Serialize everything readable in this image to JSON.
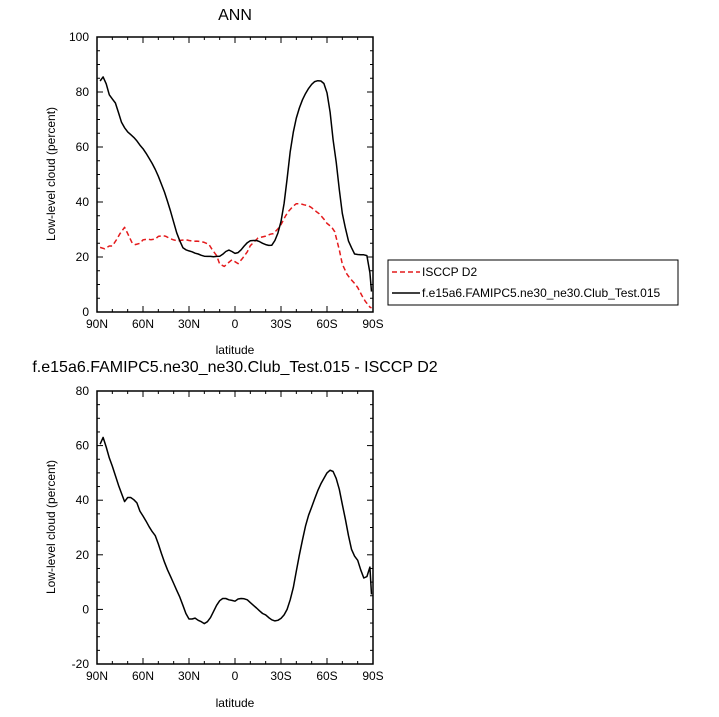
{
  "chart_data": [
    {
      "type": "line",
      "title": "ANN",
      "xlabel": "latitude",
      "ylabel": "Low-level cloud (percent)",
      "xlim": [
        -90,
        90
      ],
      "ylim": [
        0,
        100
      ],
      "x_tick_values": [
        -90,
        -60,
        -30,
        0,
        30,
        60,
        90
      ],
      "x_tick_labels": [
        "90N",
        "60N",
        "30N",
        "0",
        "30S",
        "60S",
        "90S"
      ],
      "y_tick_values": [
        0,
        20,
        40,
        60,
        80,
        100
      ],
      "y_tick_labels": [
        "0",
        "20",
        "40",
        "60",
        "80",
        "100"
      ],
      "legend_position": "right",
      "series": [
        {
          "name": "ISCCP D2",
          "color": "#e41a1c",
          "dash": "dashed",
          "x": [
            -88,
            -85,
            -82,
            -80,
            -77,
            -75,
            -72,
            -70,
            -67,
            -65,
            -62,
            -60,
            -57,
            -55,
            -52,
            -50,
            -47,
            -45,
            -42,
            -40,
            -37,
            -35,
            -32,
            -30,
            -27,
            -25,
            -22,
            -20,
            -17,
            -15,
            -12,
            -10,
            -7,
            -5,
            -2,
            0,
            2,
            5,
            8,
            10,
            13,
            15,
            18,
            20,
            23,
            25,
            28,
            30,
            33,
            35,
            38,
            40,
            43,
            45,
            48,
            50,
            53,
            55,
            58,
            60,
            63,
            65,
            68,
            70,
            73,
            75,
            78,
            80,
            83,
            85,
            88,
            89
          ],
          "y": [
            23.5,
            23,
            24,
            24,
            26.5,
            28.5,
            30.8,
            28.5,
            25,
            24.5,
            25,
            26.2,
            26.5,
            26.3,
            26.5,
            27.5,
            27.8,
            27.5,
            26.6,
            26.2,
            25.8,
            26.1,
            26.3,
            26,
            25.7,
            25.8,
            25.6,
            25.3,
            24.6,
            22.8,
            20.5,
            17.4,
            16.6,
            17.6,
            19,
            18.3,
            17.6,
            19.6,
            21.9,
            24.1,
            25.8,
            26.9,
            27.3,
            27.6,
            28.3,
            28.5,
            30.2,
            31.8,
            35,
            36.7,
            38.5,
            39.4,
            39.3,
            39,
            38.6,
            37.9,
            36.5,
            35.7,
            33.8,
            32.2,
            30.9,
            29.2,
            22.6,
            17.4,
            13.8,
            12.2,
            10.4,
            8.9,
            5.7,
            3.9,
            1.8,
            1.5
          ]
        },
        {
          "name": "f.e15a6.FAMIPC5.ne30_ne30.Club_Test.015",
          "color": "#000000",
          "dash": "solid",
          "x": [
            -88,
            -86,
            -84,
            -82,
            -80,
            -78,
            -76,
            -74,
            -72,
            -70,
            -68,
            -66,
            -64,
            -62,
            -60,
            -58,
            -56,
            -54,
            -52,
            -50,
            -48,
            -46,
            -44,
            -42,
            -40,
            -38,
            -36,
            -34,
            -32,
            -30,
            -28,
            -26,
            -24,
            -22,
            -20,
            -18,
            -16,
            -14,
            -12,
            -10,
            -8,
            -6,
            -4,
            -2,
            0,
            2,
            4,
            6,
            8,
            10,
            12,
            14,
            16,
            18,
            20,
            22,
            24,
            26,
            28,
            30,
            32,
            34,
            36,
            38,
            40,
            42,
            44,
            46,
            48,
            50,
            52,
            54,
            56,
            58,
            60,
            62,
            64,
            66,
            68,
            70,
            72,
            74,
            76,
            78,
            80,
            82,
            84,
            86,
            88,
            89
          ],
          "y": [
            84,
            85.5,
            83,
            79,
            77.5,
            76,
            72.5,
            69,
            67,
            65.5,
            64.5,
            63.5,
            62.2,
            60.7,
            59.4,
            57.7,
            55.9,
            54,
            51.8,
            49.4,
            46.5,
            43.6,
            40.2,
            36.6,
            32.6,
            28.8,
            25.9,
            23.4,
            22.6,
            22.2,
            21.9,
            21.4,
            21.1,
            20.6,
            20.3,
            20.2,
            20.2,
            20.1,
            20.2,
            20.3,
            21,
            22,
            22.5,
            22,
            21.3,
            21.6,
            22.6,
            24,
            25.2,
            25.9,
            26,
            26,
            25.6,
            25,
            24.5,
            24.2,
            24.3,
            26,
            28.7,
            32.9,
            39.5,
            48.4,
            58.3,
            65.4,
            70.5,
            74.2,
            77.2,
            79.4,
            81.3,
            82.8,
            83.8,
            84.1,
            84,
            83.1,
            79.7,
            72.7,
            62.6,
            54.5,
            44.5,
            35.9,
            30.5,
            25.8,
            23.4,
            21.1,
            20.9,
            20.8,
            20.8,
            20.5,
            14.3,
            7.4
          ]
        }
      ]
    },
    {
      "type": "line",
      "title": "f.e15a6.FAMIPC5.ne30_ne30.Club_Test.015 - ISCCP D2",
      "xlabel": "latitude",
      "ylabel": "Low-level cloud (percent)",
      "xlim": [
        -90,
        90
      ],
      "ylim": [
        -20,
        80
      ],
      "x_tick_values": [
        -90,
        -60,
        -30,
        0,
        30,
        60,
        90
      ],
      "x_tick_labels": [
        "90N",
        "60N",
        "30N",
        "0",
        "30S",
        "60S",
        "90S"
      ],
      "y_tick_values": [
        -20,
        0,
        20,
        40,
        60,
        80
      ],
      "y_tick_labels": [
        "-20",
        "0",
        "20",
        "40",
        "60",
        "80"
      ],
      "series": [
        {
          "color": "#000000",
          "dash": "solid",
          "x": [
            -88,
            -86,
            -84,
            -82,
            -80,
            -78,
            -76,
            -74,
            -72,
            -70,
            -68,
            -66,
            -64,
            -62,
            -60,
            -58,
            -56,
            -54,
            -52,
            -50,
            -48,
            -46,
            -44,
            -42,
            -40,
            -38,
            -36,
            -34,
            -32,
            -30,
            -28,
            -26,
            -24,
            -22,
            -20,
            -18,
            -16,
            -14,
            -12,
            -10,
            -8,
            -6,
            -4,
            -2,
            0,
            2,
            4,
            6,
            8,
            10,
            12,
            14,
            16,
            18,
            20,
            22,
            24,
            26,
            28,
            30,
            32,
            34,
            36,
            38,
            40,
            42,
            44,
            46,
            48,
            50,
            52,
            54,
            56,
            58,
            60,
            62,
            64,
            66,
            68,
            70,
            72,
            74,
            76,
            78,
            80,
            82,
            84,
            86,
            88,
            89
          ],
          "y": [
            60.5,
            63,
            59.5,
            55.5,
            52.5,
            49,
            45.5,
            42.5,
            39.5,
            41,
            41,
            40.2,
            39,
            36,
            34.2,
            32.3,
            30.3,
            28.5,
            27,
            24,
            20.5,
            17.3,
            14.5,
            12,
            9.5,
            7,
            4.5,
            1.5,
            -1.5,
            -3.5,
            -3.5,
            -3.2,
            -4,
            -4.5,
            -5.2,
            -4.5,
            -3,
            -0.8,
            1.5,
            3.2,
            4,
            4,
            3.5,
            3.3,
            3,
            3.8,
            4,
            3.9,
            3.5,
            2.5,
            1.5,
            0.5,
            -0.5,
            -1.5,
            -2,
            -3,
            -3.8,
            -4.2,
            -4,
            -3.3,
            -2,
            0,
            3.5,
            8,
            14,
            20,
            25.5,
            30.5,
            34.5,
            37.5,
            40.5,
            43.5,
            46,
            48,
            50,
            51,
            50.5,
            48,
            44,
            38.5,
            33,
            27,
            22,
            19.5,
            18,
            14.5,
            11.5,
            12,
            15.5,
            5.5
          ]
        }
      ]
    }
  ]
}
